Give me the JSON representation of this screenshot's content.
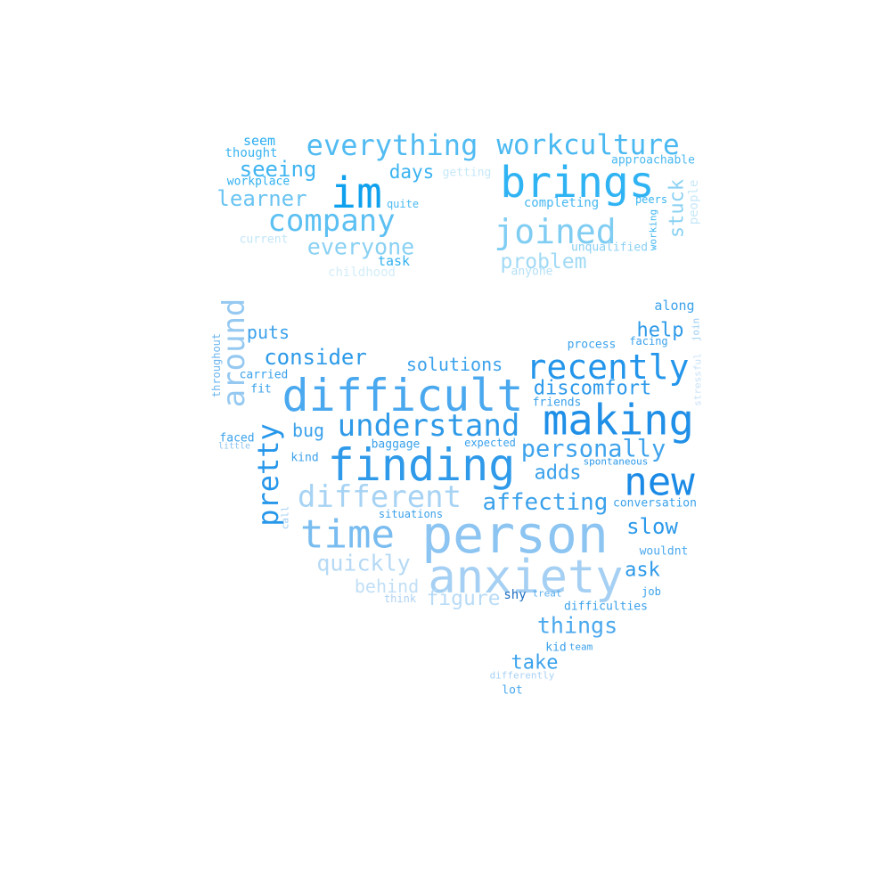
{
  "words": [
    {
      "text": "person",
      "color": "#8cc4f2"
    },
    {
      "text": "anxiety",
      "color": "#a6d0f3"
    },
    {
      "text": "finding",
      "color": "#2f9ae9"
    },
    {
      "text": "difficult",
      "color": "#4aa8ef"
    },
    {
      "text": "making",
      "color": "#1f8fe7"
    },
    {
      "text": "new",
      "color": "#1a8ae6"
    },
    {
      "text": "time",
      "color": "#79bcf0"
    },
    {
      "text": "brings",
      "color": "#2fb3f3"
    },
    {
      "text": "im",
      "color": "#0fa0ee"
    },
    {
      "text": "recently",
      "color": "#2395ea"
    },
    {
      "text": "company",
      "color": "#5cc0f2"
    },
    {
      "text": "joined",
      "color": "#80cdf3"
    },
    {
      "text": "understand",
      "color": "#2e9ae8"
    },
    {
      "text": "different",
      "color": "#a7d3f4"
    },
    {
      "text": "everything",
      "color": "#51bbf2"
    },
    {
      "text": "workculture",
      "color": "#4bb9f1"
    },
    {
      "text": "around",
      "color": "#96c9f1"
    },
    {
      "text": "pretty",
      "color": "#2797ea"
    },
    {
      "text": "personally",
      "color": "#3ea3ec"
    },
    {
      "text": "affecting",
      "color": "#3aa1eb"
    },
    {
      "text": "discomfort",
      "color": "#2c99ea"
    },
    {
      "text": "consider",
      "color": "#2c9ae9"
    },
    {
      "text": "solutions",
      "color": "#3ba2ec"
    },
    {
      "text": "quickly",
      "color": "#b6d9f5"
    },
    {
      "text": "slow",
      "color": "#2b99ea"
    },
    {
      "text": "things",
      "color": "#4aa8ee"
    },
    {
      "text": "everyone",
      "color": "#8ad1f3"
    },
    {
      "text": "learner",
      "color": "#6ac4f2"
    },
    {
      "text": "seeing",
      "color": "#3fb4f1"
    },
    {
      "text": "problem",
      "color": "#a1daf5"
    },
    {
      "text": "stuck",
      "color": "#8ad1f3"
    },
    {
      "text": "days",
      "color": "#3ab3f1"
    },
    {
      "text": "help",
      "color": "#2e9ae9"
    },
    {
      "text": "adds",
      "color": "#3aa1eb"
    },
    {
      "text": "figure",
      "color": "#b8dbf6"
    },
    {
      "text": "take",
      "color": "#3aa2ec"
    },
    {
      "text": "behind",
      "color": "#c1dff6"
    },
    {
      "text": "ask",
      "color": "#2c99e9"
    },
    {
      "text": "puts",
      "color": "#3aa1eb"
    },
    {
      "text": "bug",
      "color": "#3aa1eb"
    },
    {
      "text": "completing",
      "color": "#48b8f1"
    },
    {
      "text": "seem",
      "color": "#2aaef0"
    },
    {
      "text": "thought",
      "color": "#3ab4f1"
    },
    {
      "text": "approachable",
      "color": "#4ab9f1"
    },
    {
      "text": "getting",
      "color": "#c6e8f8"
    },
    {
      "text": "workplace",
      "color": "#2fb0f0"
    },
    {
      "text": "quite",
      "color": "#4bb9f1"
    },
    {
      "text": "current",
      "color": "#c2e6f8"
    },
    {
      "text": "task",
      "color": "#34b2f0"
    },
    {
      "text": "childhood",
      "color": "#d3edf9"
    },
    {
      "text": "unqualified",
      "color": "#8bd0f3"
    },
    {
      "text": "peers",
      "color": "#3ab4f1"
    },
    {
      "text": "people",
      "color": "#c7e8f8"
    },
    {
      "text": "working",
      "color": "#42b6f1"
    },
    {
      "text": "anyone",
      "color": "#b5e0f6"
    },
    {
      "text": "along",
      "color": "#3aa1eb"
    },
    {
      "text": "process",
      "color": "#3ba2ec"
    },
    {
      "text": "facing",
      "color": "#3ba2ec"
    },
    {
      "text": "join",
      "color": "#9bcdf3"
    },
    {
      "text": "throughout",
      "color": "#6cb6ef"
    },
    {
      "text": "carried",
      "color": "#3aa1eb"
    },
    {
      "text": "fit",
      "color": "#3aa1eb"
    },
    {
      "text": "stressful",
      "color": "#c8e2f7"
    },
    {
      "text": "friends",
      "color": "#3aa1eb"
    },
    {
      "text": "faced",
      "color": "#3aa1eb"
    },
    {
      "text": "little",
      "color": "#8cc4f2"
    },
    {
      "text": "baggage",
      "color": "#3aa1eb"
    },
    {
      "text": "expected",
      "color": "#3aa1eb"
    },
    {
      "text": "kind",
      "color": "#3aa1eb"
    },
    {
      "text": "spontaneous",
      "color": "#2c99e9"
    },
    {
      "text": "call",
      "color": "#9dcdf3"
    },
    {
      "text": "situations",
      "color": "#3aa1eb"
    },
    {
      "text": "conversation",
      "color": "#3aa1eb"
    },
    {
      "text": "wouldnt",
      "color": "#4aa8ee"
    },
    {
      "text": "shy",
      "color": "#1e6fc0"
    },
    {
      "text": "treat",
      "color": "#5aafef"
    },
    {
      "text": "think",
      "color": "#aed2f4"
    },
    {
      "text": "job",
      "color": "#3aa1eb"
    },
    {
      "text": "difficulties",
      "color": "#3aa1eb"
    },
    {
      "text": "kid",
      "color": "#3aa1eb"
    },
    {
      "text": "team",
      "color": "#3aa1eb"
    },
    {
      "text": "differently",
      "color": "#a8d1f3"
    },
    {
      "text": "lot",
      "color": "#4aa8ee"
    }
  ]
}
